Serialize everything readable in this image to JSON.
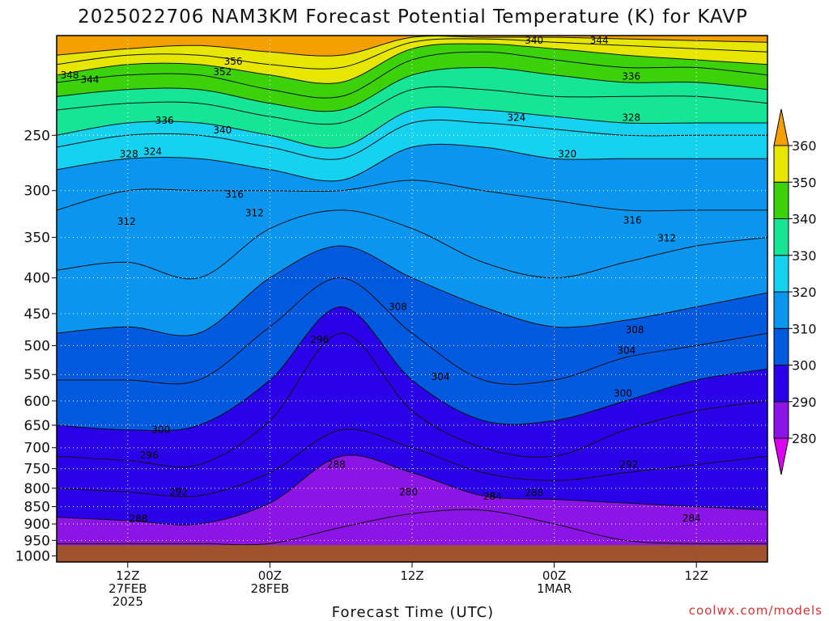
{
  "chart_data": {
    "type": "heatmap",
    "title": "2025022706 NAM3KM Forecast Potential Temperature (K) for KAVP",
    "xlabel": "Forecast Time (UTC)",
    "ylabel": "",
    "credit": "coolwx.com/models",
    "y_scale": "pressure (hPa), log-like, top ~180, bottom ~1020",
    "y_ticks": [
      "250",
      "300",
      "350",
      "400",
      "450",
      "500",
      "550",
      "600",
      "650",
      "700",
      "750",
      "800",
      "850",
      "900",
      "950",
      "1000"
    ],
    "x_ticks": [
      {
        "hour": 6,
        "line1": "12Z",
        "line2": "27FEB",
        "line3": "2025"
      },
      {
        "hour": 18,
        "line1": "00Z",
        "line2": "28FEB",
        "line3": ""
      },
      {
        "hour": 30,
        "line1": "12Z",
        "line2": "",
        "line3": ""
      },
      {
        "hour": 42,
        "line1": "00Z",
        "line2": "1MAR",
        "line3": ""
      },
      {
        "hour": 54,
        "line1": "12Z",
        "line2": "",
        "line3": ""
      }
    ],
    "x_range_hours": [
      0,
      60
    ],
    "grid": true,
    "colorbar": {
      "levels": [
        280,
        290,
        300,
        310,
        320,
        330,
        340,
        350,
        360
      ],
      "labels": [
        "280",
        "290",
        "300",
        "310",
        "320",
        "330",
        "340",
        "350",
        "360"
      ],
      "colors": [
        "#dc00f0",
        "#8c14e6",
        "#2a00e8",
        "#005ae0",
        "#0a96f0",
        "#14d2f0",
        "#14e696",
        "#3cd20a",
        "#e6e600",
        "#f5a000"
      ]
    },
    "series": [
      {
        "value": 284,
        "hours": [
          0,
          6,
          12,
          18,
          24,
          30,
          36,
          42,
          48,
          54,
          60
        ],
        "pressure": [
          960,
          960,
          960,
          960,
          910,
          870,
          860,
          900,
          950,
          960,
          960
        ]
      },
      {
        "value": 288,
        "hours": [
          0,
          6,
          12,
          18,
          24,
          30,
          36,
          42,
          48,
          54,
          60
        ],
        "pressure": [
          880,
          890,
          900,
          840,
          720,
          760,
          820,
          830,
          840,
          850,
          860
        ]
      },
      {
        "value": 292,
        "hours": [
          0,
          6,
          12,
          18,
          24,
          30,
          36,
          42,
          48,
          54,
          60
        ],
        "pressure": [
          800,
          810,
          820,
          760,
          660,
          700,
          760,
          780,
          760,
          740,
          720
        ]
      },
      {
        "value": 296,
        "hours": [
          0,
          6,
          12,
          18,
          24,
          30,
          36,
          42,
          48,
          54,
          60
        ],
        "pressure": [
          720,
          730,
          740,
          640,
          480,
          620,
          700,
          720,
          660,
          620,
          600
        ]
      },
      {
        "value": 300,
        "hours": [
          0,
          6,
          12,
          18,
          24,
          30,
          36,
          42,
          48,
          54,
          60
        ],
        "pressure": [
          650,
          660,
          650,
          560,
          440,
          560,
          640,
          640,
          600,
          560,
          540
        ]
      },
      {
        "value": 304,
        "hours": [
          0,
          6,
          12,
          18,
          24,
          30,
          36,
          42,
          48,
          54,
          60
        ],
        "pressure": [
          560,
          560,
          560,
          470,
          400,
          480,
          560,
          560,
          520,
          500,
          480
        ]
      },
      {
        "value": 308,
        "hours": [
          0,
          6,
          12,
          18,
          24,
          30,
          36,
          42,
          48,
          54,
          60
        ],
        "pressure": [
          480,
          470,
          480,
          400,
          360,
          400,
          440,
          470,
          460,
          440,
          420
        ]
      },
      {
        "value": 312,
        "hours": [
          0,
          6,
          12,
          18,
          24,
          30,
          36,
          42,
          48,
          54,
          60
        ],
        "pressure": [
          390,
          380,
          400,
          340,
          320,
          340,
          380,
          400,
          380,
          360,
          350
        ]
      },
      {
        "value": 316,
        "hours": [
          0,
          6,
          12,
          18,
          24,
          30,
          36,
          42,
          48,
          54,
          60
        ],
        "pressure": [
          320,
          300,
          300,
          300,
          300,
          290,
          300,
          310,
          320,
          320,
          320
        ]
      },
      {
        "value": 320,
        "hours": [
          0,
          6,
          12,
          18,
          24,
          30,
          36,
          42,
          48,
          54,
          60
        ],
        "pressure": [
          280,
          270,
          270,
          280,
          290,
          260,
          260,
          270,
          270,
          270,
          270
        ]
      },
      {
        "value": 324,
        "hours": [
          0,
          6,
          12,
          18,
          24,
          30,
          36,
          42,
          48,
          54,
          60
        ],
        "pressure": [
          260,
          250,
          250,
          260,
          270,
          240,
          240,
          245,
          250,
          250,
          250
        ]
      },
      {
        "value": 328,
        "hours": [
          0,
          6,
          12,
          18,
          24,
          30,
          36,
          42,
          48,
          54,
          60
        ],
        "pressure": [
          250,
          240,
          240,
          250,
          260,
          230,
          230,
          235,
          240,
          240,
          240
        ]
      },
      {
        "value": 336,
        "hours": [
          0,
          6,
          12,
          18,
          24,
          30,
          36,
          42,
          48,
          54,
          60
        ],
        "pressure": [
          230,
          225,
          225,
          235,
          240,
          215,
          215,
          220,
          220,
          220,
          225
        ]
      },
      {
        "value": 340,
        "hours": [
          0,
          6,
          12,
          18,
          24,
          30,
          36,
          42,
          48,
          54,
          60
        ],
        "pressure": [
          220,
          215,
          215,
          225,
          230,
          205,
          200,
          205,
          210,
          210,
          215
        ]
      },
      {
        "value": 344,
        "hours": [
          0,
          6,
          12,
          18,
          24,
          30,
          36,
          42,
          48,
          54,
          60
        ],
        "pressure": [
          210,
          205,
          205,
          215,
          220,
          195,
          190,
          195,
          200,
          200,
          205
        ]
      },
      {
        "value": 348,
        "hours": [
          0,
          6,
          12,
          18,
          24,
          30,
          36,
          42,
          48,
          54,
          60
        ],
        "pressure": [
          205,
          198,
          198,
          205,
          210,
          188,
          185,
          188,
          192,
          195,
          198
        ]
      },
      {
        "value": 352,
        "hours": [
          0,
          6,
          12,
          18,
          24,
          30,
          36,
          42,
          48,
          54,
          60
        ],
        "pressure": [
          198,
          192,
          192,
          198,
          200,
          184,
          182,
          184,
          186,
          188,
          190
        ]
      },
      {
        "value": 356,
        "hours": [
          0,
          6,
          12,
          18,
          24,
          30,
          36,
          42,
          48,
          54,
          60
        ],
        "pressure": [
          192,
          188,
          186,
          190,
          192,
          181,
          181,
          181,
          182,
          183,
          184
        ]
      }
    ],
    "contour_labels": [
      {
        "text": "348",
        "hour": 1.1,
        "pressure": 205
      },
      {
        "text": "344",
        "hour": 2.8,
        "pressure": 208
      },
      {
        "text": "352",
        "hour": 14.0,
        "pressure": 203
      },
      {
        "text": "356",
        "hour": 14.9,
        "pressure": 196
      },
      {
        "text": "336",
        "hour": 9.1,
        "pressure": 238
      },
      {
        "text": "340",
        "hour": 14.0,
        "pressure": 246
      },
      {
        "text": "328",
        "hour": 6.1,
        "pressure": 266
      },
      {
        "text": "324",
        "hour": 8.1,
        "pressure": 264
      },
      {
        "text": "316",
        "hour": 15.0,
        "pressure": 304
      },
      {
        "text": "312",
        "hour": 16.7,
        "pressure": 323
      },
      {
        "text": "312",
        "hour": 5.9,
        "pressure": 332
      },
      {
        "text": "340",
        "hour": 40.3,
        "pressure": 183
      },
      {
        "text": "344",
        "hour": 45.8,
        "pressure": 183
      },
      {
        "text": "336",
        "hour": 48.5,
        "pressure": 206
      },
      {
        "text": "324",
        "hour": 38.8,
        "pressure": 236
      },
      {
        "text": "328",
        "hour": 48.5,
        "pressure": 236
      },
      {
        "text": "320",
        "hour": 43.1,
        "pressure": 266
      },
      {
        "text": "316",
        "hour": 48.6,
        "pressure": 331
      },
      {
        "text": "312",
        "hour": 51.5,
        "pressure": 351
      },
      {
        "text": "308",
        "hour": 28.8,
        "pressure": 440
      },
      {
        "text": "308",
        "hour": 48.8,
        "pressure": 475
      },
      {
        "text": "304",
        "hour": 48.1,
        "pressure": 508
      },
      {
        "text": "304",
        "hour": 32.4,
        "pressure": 554
      },
      {
        "text": "300",
        "hour": 47.8,
        "pressure": 585
      },
      {
        "text": "296",
        "hour": 22.2,
        "pressure": 490
      },
      {
        "text": "300",
        "hour": 8.8,
        "pressure": 660
      },
      {
        "text": "296",
        "hour": 7.8,
        "pressure": 718
      },
      {
        "text": "292",
        "hour": 10.3,
        "pressure": 810
      },
      {
        "text": "288",
        "hour": 6.9,
        "pressure": 885
      },
      {
        "text": "288",
        "hour": 23.6,
        "pressure": 740
      },
      {
        "text": "280",
        "hour": 29.7,
        "pressure": 810
      },
      {
        "text": "284",
        "hour": 36.8,
        "pressure": 822
      },
      {
        "text": "288",
        "hour": 40.3,
        "pressure": 812
      },
      {
        "text": "292",
        "hour": 48.3,
        "pressure": 740
      },
      {
        "text": "284",
        "hour": 53.6,
        "pressure": 883
      }
    ],
    "ground_pressure": 965
  }
}
